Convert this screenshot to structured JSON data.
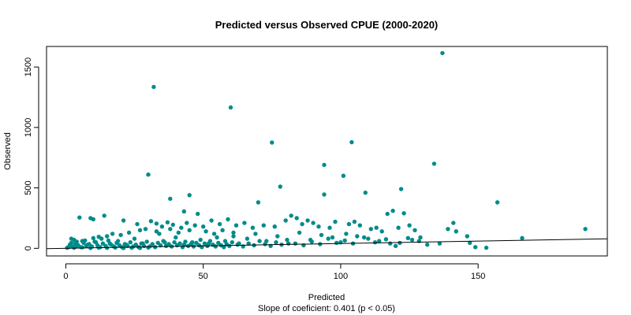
{
  "chart_data": {
    "type": "scatter",
    "title": "Predicted versus Observed CPUE (2000-2020)",
    "xlabel": "Predicted",
    "ylabel": "Observed",
    "subtitle": "Slope of coeficient: 0.401 (p < 0.05)",
    "xlim": [
      -7,
      197
    ],
    "ylim": [
      -63,
      1670
    ],
    "x_ticks": [
      0,
      50,
      100,
      150
    ],
    "y_ticks": [
      0,
      500,
      1000,
      1500
    ],
    "grid": false,
    "point_color": "#008B8B",
    "line_color": "#000000",
    "trend_line": {
      "intercept": 0,
      "slope": 0.401,
      "x_start": -7,
      "x_end": 197
    },
    "series": [
      {
        "points": [
          [
            137,
            1615
          ],
          [
            32,
            1335
          ],
          [
            60,
            1165
          ],
          [
            75,
            875
          ],
          [
            104,
            878
          ],
          [
            30,
            610
          ],
          [
            94,
            690
          ],
          [
            101,
            600
          ],
          [
            134,
            700
          ],
          [
            78,
            510
          ],
          [
            94,
            445
          ],
          [
            109,
            460
          ],
          [
            122,
            490
          ],
          [
            45,
            440
          ],
          [
            38,
            410
          ],
          [
            70,
            380
          ],
          [
            157,
            380
          ],
          [
            43,
            305
          ],
          [
            48,
            285
          ],
          [
            5,
            255
          ],
          [
            9,
            250
          ],
          [
            10,
            240
          ],
          [
            14,
            270
          ],
          [
            21,
            230
          ],
          [
            26,
            200
          ],
          [
            31,
            225
          ],
          [
            33,
            205
          ],
          [
            37,
            215
          ],
          [
            39,
            195
          ],
          [
            42,
            170
          ],
          [
            44,
            210
          ],
          [
            47,
            190
          ],
          [
            50,
            180
          ],
          [
            53,
            230
          ],
          [
            56,
            200
          ],
          [
            59,
            240
          ],
          [
            62,
            190
          ],
          [
            65,
            210
          ],
          [
            68,
            170
          ],
          [
            72,
            190
          ],
          [
            76,
            180
          ],
          [
            80,
            230
          ],
          [
            82,
            270
          ],
          [
            84,
            250
          ],
          [
            86,
            200
          ],
          [
            88,
            230
          ],
          [
            90,
            210
          ],
          [
            92,
            180
          ],
          [
            96,
            170
          ],
          [
            98,
            220
          ],
          [
            103,
            200
          ],
          [
            105,
            220
          ],
          [
            107,
            190
          ],
          [
            111,
            160
          ],
          [
            113,
            170
          ],
          [
            115,
            140
          ],
          [
            117,
            285
          ],
          [
            119,
            310
          ],
          [
            121,
            170
          ],
          [
            123,
            290
          ],
          [
            125,
            190
          ],
          [
            127,
            150
          ],
          [
            139,
            160
          ],
          [
            141,
            210
          ],
          [
            142,
            140
          ],
          [
            146,
            100
          ],
          [
            166,
            85
          ],
          [
            189,
            160
          ],
          [
            126,
            70
          ],
          [
            129,
            90
          ],
          [
            136,
            40
          ],
          [
            149,
            10
          ],
          [
            153,
            5
          ],
          [
            147,
            45
          ],
          [
            102,
            120
          ],
          [
            106,
            100
          ],
          [
            110,
            80
          ],
          [
            114,
            60
          ],
          [
            118,
            40
          ],
          [
            120,
            20
          ],
          [
            100,
            50
          ],
          [
            97,
            90
          ],
          [
            93,
            110
          ],
          [
            89,
            70
          ],
          [
            85,
            130
          ],
          [
            81,
            40
          ],
          [
            77,
            100
          ],
          [
            73,
            60
          ],
          [
            69,
            120
          ],
          [
            66,
            80
          ],
          [
            63,
            40
          ],
          [
            61,
            100
          ],
          [
            58,
            60
          ],
          [
            55,
            90
          ],
          [
            52,
            40
          ],
          [
            49,
            70
          ],
          [
            46,
            50
          ],
          [
            43,
            30
          ],
          [
            40,
            90
          ],
          [
            36,
            50
          ],
          [
            34,
            120
          ],
          [
            28,
            40
          ],
          [
            25,
            80
          ],
          [
            22,
            30
          ],
          [
            19,
            60
          ],
          [
            16,
            40
          ],
          [
            13,
            80
          ],
          [
            11,
            50
          ],
          [
            8,
            30
          ],
          [
            6,
            60
          ],
          [
            4,
            20
          ],
          [
            3,
            70
          ],
          [
            2,
            80
          ],
          [
            1,
            10
          ],
          [
            0.5,
            5
          ],
          [
            1.5,
            30
          ],
          [
            2.5,
            15
          ],
          [
            3.5,
            40
          ],
          [
            4.5,
            25
          ],
          [
            5.5,
            10
          ],
          [
            6.5,
            45
          ],
          [
            7.5,
            20
          ],
          [
            8.5,
            35
          ],
          [
            9.5,
            15
          ],
          [
            10.5,
            55
          ],
          [
            11.5,
            25
          ],
          [
            12.5,
            10
          ],
          [
            13.5,
            40
          ],
          [
            14.5,
            20
          ],
          [
            15.5,
            65
          ],
          [
            16.5,
            30
          ],
          [
            17.5,
            15
          ],
          [
            18.5,
            45
          ],
          [
            19.5,
            25
          ],
          [
            20.5,
            10
          ],
          [
            21.5,
            35
          ],
          [
            22.5,
            20
          ],
          [
            23.5,
            50
          ],
          [
            24.5,
            15
          ],
          [
            25.5,
            30
          ],
          [
            26.5,
            10
          ],
          [
            27.5,
            40
          ],
          [
            28.5,
            20
          ],
          [
            29.5,
            55
          ],
          [
            30.5,
            15
          ],
          [
            31.5,
            35
          ],
          [
            32.5,
            10
          ],
          [
            33.5,
            45
          ],
          [
            34.5,
            25
          ],
          [
            35.5,
            60
          ],
          [
            36.5,
            20
          ],
          [
            37.5,
            35
          ],
          [
            38.5,
            15
          ],
          [
            39.5,
            50
          ],
          [
            40.5,
            25
          ],
          [
            41.5,
            40
          ],
          [
            42.5,
            10
          ],
          [
            43.5,
            55
          ],
          [
            44.5,
            20
          ],
          [
            45.5,
            35
          ],
          [
            46.5,
            15
          ],
          [
            47.5,
            45
          ],
          [
            48.5,
            25
          ],
          [
            49.5,
            10
          ],
          [
            50.5,
            40
          ],
          [
            51.5,
            20
          ],
          [
            52.5,
            60
          ],
          [
            53.5,
            30
          ],
          [
            54.5,
            15
          ],
          [
            55.5,
            45
          ],
          [
            56.5,
            25
          ],
          [
            57.5,
            10
          ],
          [
            58.5,
            35
          ],
          [
            59.5,
            20
          ],
          [
            60.5,
            50
          ],
          [
            62.5,
            30
          ],
          [
            64.5,
            15
          ],
          [
            66.5,
            40
          ],
          [
            68.5,
            25
          ],
          [
            70.5,
            60
          ],
          [
            72.5,
            35
          ],
          [
            74.5,
            20
          ],
          [
            76.5,
            50
          ],
          [
            78.5,
            30
          ],
          [
            80.5,
            70
          ],
          [
            83.5,
            40
          ],
          [
            86.5,
            25
          ],
          [
            89.5,
            55
          ],
          [
            92.5,
            35
          ],
          [
            95.5,
            80
          ],
          [
            98.5,
            45
          ],
          [
            101.5,
            65
          ],
          [
            104.5,
            40
          ],
          [
            108.5,
            90
          ],
          [
            112.5,
            50
          ],
          [
            116.5,
            75
          ],
          [
            121.5,
            45
          ],
          [
            124.5,
            85
          ],
          [
            128.5,
            60
          ],
          [
            131.5,
            30
          ],
          [
            3,
            5
          ],
          [
            6,
            8
          ],
          [
            9,
            3
          ],
          [
            12,
            6
          ],
          [
            15,
            4
          ],
          [
            18,
            7
          ],
          [
            21,
            2
          ],
          [
            24,
            5
          ],
          [
            27,
            3
          ],
          [
            30,
            6
          ],
          [
            2,
            45
          ],
          [
            4,
            55
          ],
          [
            7,
            65
          ],
          [
            10,
            85
          ],
          [
            12,
            95
          ],
          [
            15,
            100
          ],
          [
            17,
            120
          ],
          [
            20,
            110
          ],
          [
            23,
            130
          ],
          [
            27,
            150
          ],
          [
            29,
            160
          ],
          [
            33,
            140
          ],
          [
            35,
            180
          ],
          [
            38,
            160
          ],
          [
            41,
            130
          ],
          [
            45,
            150
          ],
          [
            51,
            140
          ],
          [
            54,
            120
          ],
          [
            57,
            150
          ],
          [
            61,
            130
          ]
        ]
      }
    ]
  }
}
